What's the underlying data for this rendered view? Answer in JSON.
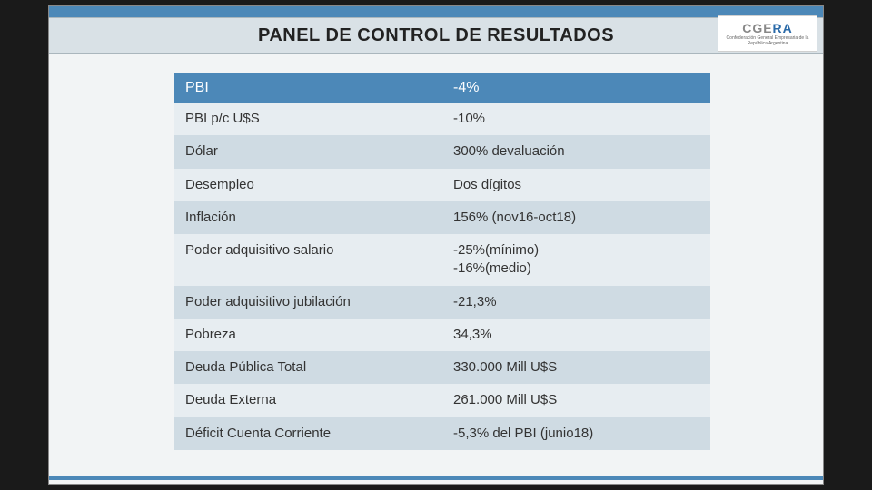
{
  "title": "PANEL DE CONTROL DE RESULTADOS",
  "logo": {
    "text_gray": "CGE",
    "text_blue": "RA",
    "subtitle": "Confederación General Empresaria de la República Argentina"
  },
  "table": {
    "type": "table",
    "header_bg": "#4c88b8",
    "header_text_color": "#ffffff",
    "row_odd_bg": "#e7edf1",
    "row_even_bg": "#cfdbe3",
    "text_color": "#333333",
    "font_size": 15,
    "columns": [
      "PBI",
      "-4%"
    ],
    "rows": [
      {
        "label": "PBI p/c U$S",
        "value": "-10%"
      },
      {
        "label": "Dólar",
        "value": "300% devaluación"
      },
      {
        "label": "Desempleo",
        "value": "Dos dígitos"
      },
      {
        "label": "Inflación",
        "value": "156% (nov16-oct18)"
      },
      {
        "label": "Poder adquisitivo salario",
        "value": "-25%(mínimo)\n-16%(medio)"
      },
      {
        "label": "Poder adquisitivo jubilación",
        "value": "-21,3%"
      },
      {
        "label": "Pobreza",
        "value": "34,3%"
      },
      {
        "label": "Deuda Pública Total",
        "value": "330.000 Mill U$S"
      },
      {
        "label": "Deuda Externa",
        "value": "261.000 Mill U$S"
      },
      {
        "label": "Déficit Cuenta Corriente",
        "value": "-5,3% del PBI (junio18)"
      }
    ]
  },
  "colors": {
    "slide_bg": "#f2f4f5",
    "accent": "#4c88b8",
    "header_band": "#d9e1e6",
    "page_bg": "#1a1a1a"
  }
}
